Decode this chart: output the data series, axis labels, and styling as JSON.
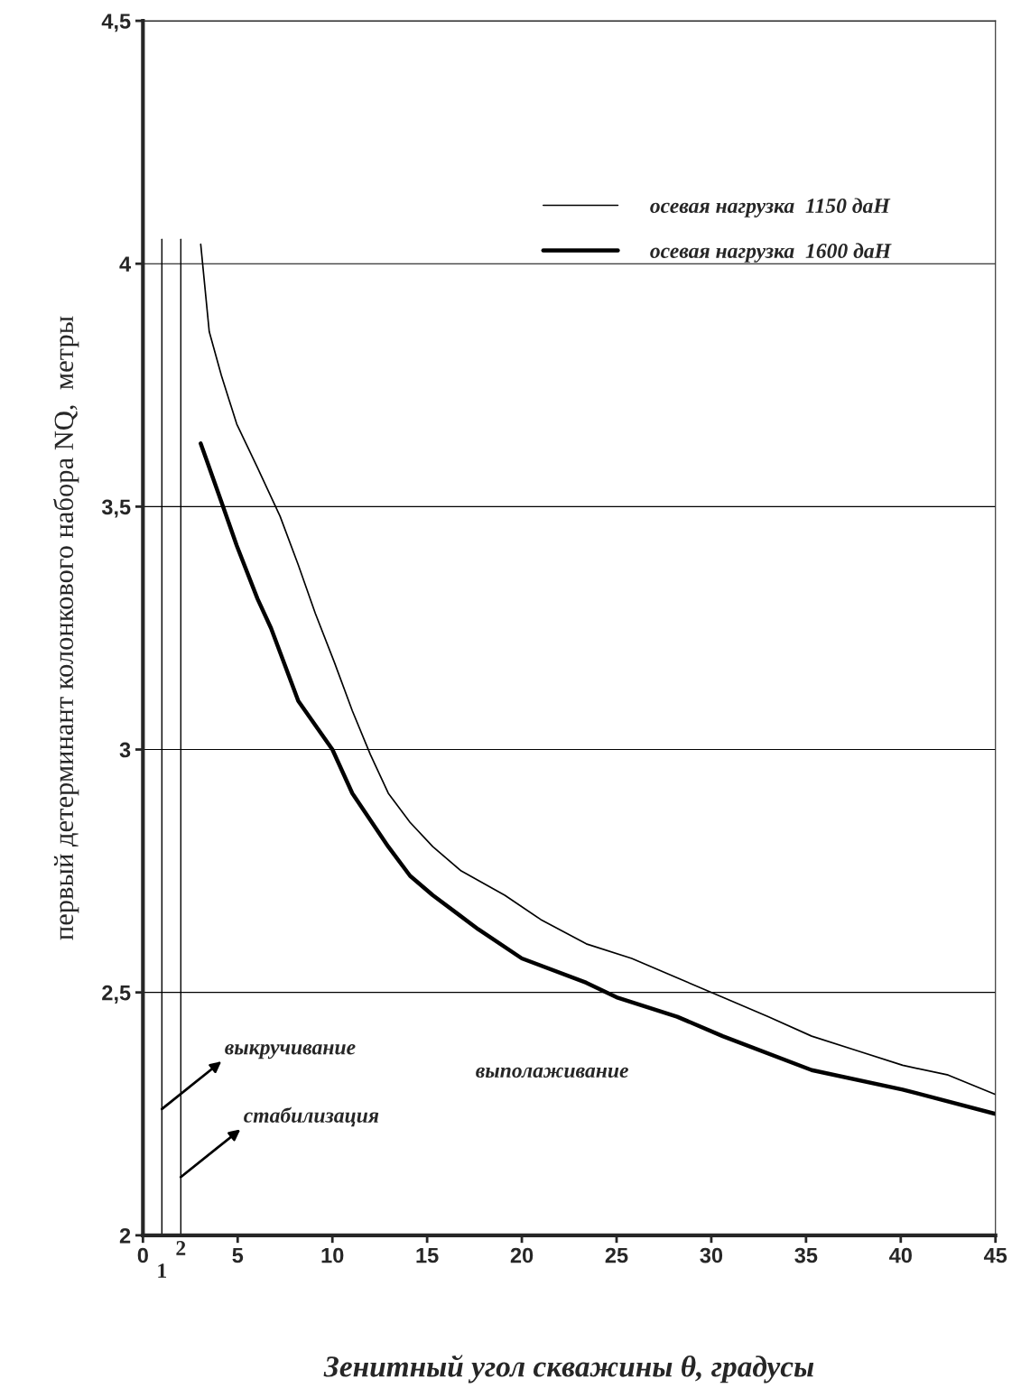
{
  "chart_data": {
    "type": "line",
    "xlabel": "Зенитный угол скважины θ, градусы",
    "ylabel": "первый детерминант колонкового набора NQ,  метры",
    "xlim": [
      0,
      45
    ],
    "ylim": [
      2,
      4.5
    ],
    "xticks": [
      0,
      5,
      10,
      15,
      20,
      25,
      30,
      35,
      40,
      45
    ],
    "yticks": [
      2,
      {
        "value": 2.5,
        "label": "2,5"
      },
      3,
      {
        "value": 3.5,
        "label": "3,5"
      },
      4,
      {
        "value": 4.5,
        "label": "4,5"
      }
    ],
    "grid": "y",
    "legend": "top right",
    "marker": "none",
    "line_style": "solid",
    "series": [
      {
        "name": "осевая нагрузка  1150 даН",
        "color": "#000000",
        "x": [
          3.05,
          3.5,
          4.14,
          4.95,
          6.05,
          7.24,
          8.2,
          9.1,
          10.1,
          11.05,
          12,
          12.95,
          14.1,
          15.3,
          16.8,
          19.1,
          21,
          23.4,
          25.8,
          28.2,
          30.6,
          33,
          35.3,
          37.7,
          40.1,
          42.5,
          45
        ],
        "values": [
          4.04,
          3.86,
          3.77,
          3.67,
          3.58,
          3.48,
          3.38,
          3.28,
          3.18,
          3.08,
          2.99,
          2.91,
          2.85,
          2.8,
          2.75,
          2.7,
          2.65,
          2.6,
          2.57,
          2.53,
          2.49,
          2.45,
          2.41,
          2.38,
          2.35,
          2.33,
          2.29
        ]
      },
      {
        "name": "осевая нагрузка  1600 даН",
        "color": "#000000",
        "x": [
          3.05,
          4.14,
          4.95,
          6.05,
          6.76,
          8.2,
          10,
          11.05,
          12.95,
          14.1,
          15.3,
          17.7,
          20,
          23.4,
          25,
          28.2,
          30.6,
          35.3,
          40.1,
          45
        ],
        "values": [
          3.63,
          3.51,
          3.42,
          3.31,
          3.25,
          3.1,
          3.0,
          2.91,
          2.8,
          2.74,
          2.7,
          2.63,
          2.57,
          2.52,
          2.49,
          2.45,
          2.41,
          2.34,
          2.3,
          2.25
        ]
      }
    ],
    "ref_lines": [
      {
        "axis": "x",
        "value": 1,
        "label": "1",
        "color": "#000000"
      },
      {
        "axis": "x",
        "value": 2,
        "label": "2",
        "color": "#000000"
      }
    ],
    "annotations": [
      {
        "text": "выкручивание",
        "x": 1,
        "y": 2.26
      },
      {
        "text": "стабилизация",
        "x": 2,
        "y": 2.12
      },
      "выполаживание"
    ]
  }
}
